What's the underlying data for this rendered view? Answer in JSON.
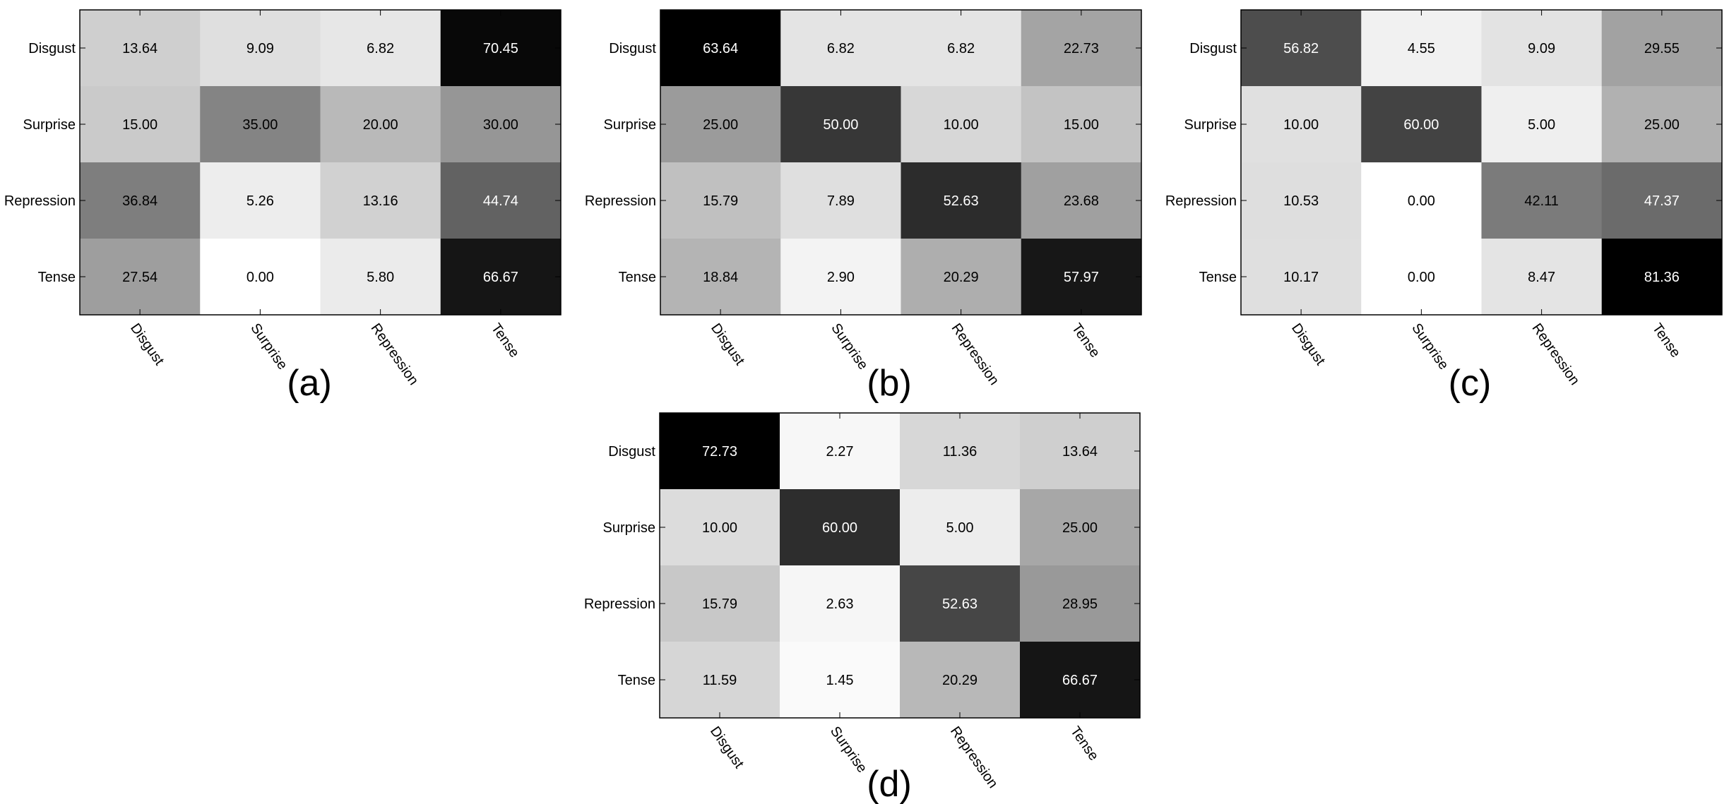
{
  "chart_data": [
    {
      "type": "heatmap",
      "caption": "(a)",
      "rows": [
        "Disgust",
        "Surprise",
        "Repression",
        "Tense"
      ],
      "columns": [
        "Disgust",
        "Surprise",
        "Repression",
        "Tense"
      ],
      "values": [
        [
          "13.64",
          "9.09",
          "6.82",
          "70.45"
        ],
        [
          "15.00",
          "35.00",
          "20.00",
          "30.00"
        ],
        [
          "36.84",
          "5.26",
          "13.16",
          "44.74"
        ],
        [
          "27.54",
          "0.00",
          "5.80",
          "66.67"
        ]
      ],
      "colormap": "gray-reversed",
      "value_range": [
        0,
        72.73
      ]
    },
    {
      "type": "heatmap",
      "caption": "(b)",
      "rows": [
        "Disgust",
        "Surprise",
        "Repression",
        "Tense"
      ],
      "columns": [
        "Disgust",
        "Surprise",
        "Repression",
        "Tense"
      ],
      "values": [
        [
          "63.64",
          "6.82",
          "6.82",
          "22.73"
        ],
        [
          "25.00",
          "50.00",
          "10.00",
          "15.00"
        ],
        [
          "15.79",
          "7.89",
          "52.63",
          "23.68"
        ],
        [
          "18.84",
          "2.90",
          "20.29",
          "57.97"
        ]
      ],
      "colormap": "gray-reversed",
      "value_range": [
        0,
        63.64
      ]
    },
    {
      "type": "heatmap",
      "caption": "(c)",
      "rows": [
        "Disgust",
        "Surprise",
        "Repression",
        "Tense"
      ],
      "columns": [
        "Disgust",
        "Surprise",
        "Repression",
        "Tense"
      ],
      "values": [
        [
          "56.82",
          "4.55",
          "9.09",
          "29.55"
        ],
        [
          "10.00",
          "60.00",
          "5.00",
          "25.00"
        ],
        [
          "10.53",
          "0.00",
          "42.11",
          "47.37"
        ],
        [
          "10.17",
          "0.00",
          "8.47",
          "81.36"
        ]
      ],
      "colormap": "gray-reversed",
      "value_range": [
        0,
        81.36
      ]
    },
    {
      "type": "heatmap",
      "caption": "(d)",
      "rows": [
        "Disgust",
        "Surprise",
        "Repression",
        "Tense"
      ],
      "columns": [
        "Disgust",
        "Surprise",
        "Repression",
        "Tense"
      ],
      "values": [
        [
          "72.73",
          "2.27",
          "11.36",
          "13.64"
        ],
        [
          "10.00",
          "60.00",
          "5.00",
          "25.00"
        ],
        [
          "15.79",
          "2.63",
          "52.63",
          "28.95"
        ],
        [
          "11.59",
          "1.45",
          "20.29",
          "66.67"
        ]
      ],
      "colormap": "gray-reversed",
      "value_range": [
        0,
        72.73
      ]
    }
  ]
}
